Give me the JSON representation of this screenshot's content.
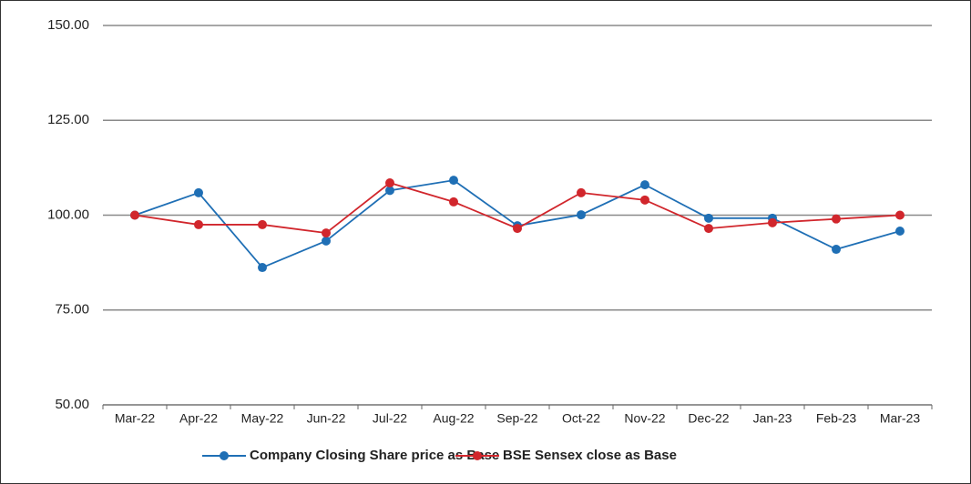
{
  "chart_data": {
    "type": "line",
    "categories": [
      "Mar-22",
      "Apr-22",
      "May-22",
      "Jun-22",
      "Jul-22",
      "Aug-22",
      "Sep-22",
      "Oct-22",
      "Nov-22",
      "Dec-22",
      "Jan-23",
      "Feb-23",
      "Mar-23"
    ],
    "series": [
      {
        "name": "Company Closing Share price as Base",
        "color": "#1f6fb5",
        "values": [
          100,
          105.9,
          86.2,
          93.2,
          106.5,
          109.2,
          97.2,
          100.1,
          108.0,
          99.2,
          99.2,
          91.0,
          95.8
        ]
      },
      {
        "name": "BSE Sensex close as Base",
        "color": "#d1262c",
        "values": [
          100,
          97.5,
          97.5,
          95.3,
          108.5,
          103.5,
          96.5,
          105.9,
          104.0,
          96.5,
          98.0,
          99.0,
          100
        ]
      }
    ],
    "ylim": [
      50,
      150
    ],
    "yticks": [
      {
        "value": 50,
        "label": "50.00"
      },
      {
        "value": 75,
        "label": "75.00"
      },
      {
        "value": 100,
        "label": "100.00"
      },
      {
        "value": 125,
        "label": "125.00"
      },
      {
        "value": 150,
        "label": "150.00"
      }
    ],
    "grid": true,
    "legend": "bottom"
  }
}
